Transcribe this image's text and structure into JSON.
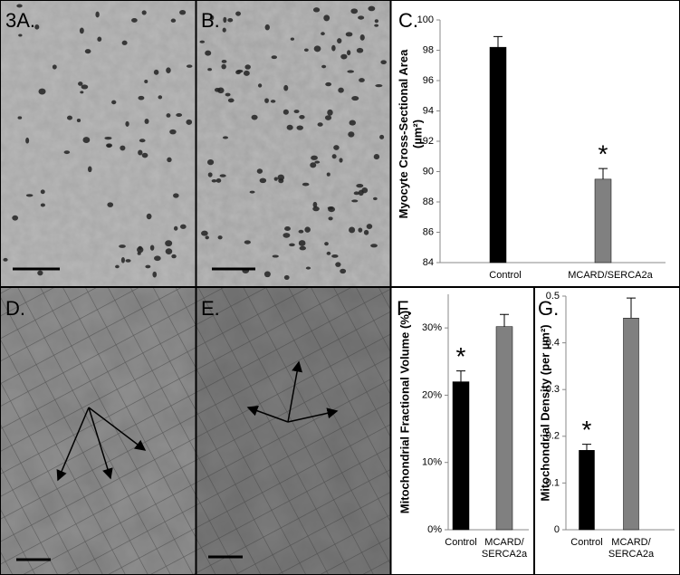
{
  "panel_labels": [
    "3A.",
    "B.",
    "D.",
    "E."
  ],
  "chart_data": [
    {
      "type": "bar",
      "panel_label": "C.",
      "y_label": "Myocyte Cross-Sectional Area (µm²)",
      "categories": [
        "Control",
        "MCARD/SERCA2a"
      ],
      "values": [
        98.2,
        89.5
      ],
      "errors": [
        0.7,
        0.7
      ],
      "colors": [
        "#000000",
        "#808080"
      ],
      "ylim": [
        84,
        100
      ],
      "yticks": [
        84,
        86,
        88,
        90,
        92,
        94,
        96,
        98,
        100
      ],
      "annotations": [
        {
          "text": "*",
          "x": "MCARD/SERCA2a"
        }
      ]
    },
    {
      "type": "bar",
      "panel_label": "F.",
      "y_label": "Mitochondrial Fractional Volume (%)",
      "categories": [
        "Control",
        "MCARD/SERCA2a"
      ],
      "values": [
        22,
        30.2
      ],
      "errors": [
        1.6,
        1.8
      ],
      "colors": [
        "#000000",
        "#808080"
      ],
      "ylim": [
        0,
        35
      ],
      "yticks": [
        {
          "value": 0,
          "label": "0%"
        },
        {
          "value": 10,
          "label": "10%"
        },
        {
          "value": 20,
          "label": "20%"
        },
        {
          "value": 30,
          "label": "30%"
        }
      ],
      "annotations": [
        {
          "text": "*",
          "x": "Control"
        }
      ]
    },
    {
      "type": "bar",
      "panel_label": "G.",
      "y_label": "Mitochondrial Density (per µm²)",
      "categories": [
        "Control",
        "MCARD/SERCA2a"
      ],
      "values": [
        0.17,
        0.453
      ],
      "errors": [
        0.013,
        0.043
      ],
      "colors": [
        "#000000",
        "#808080"
      ],
      "ylim": [
        0,
        0.5
      ],
      "yticks": [
        0,
        0.1,
        0.2,
        0.3,
        0.4,
        0.5
      ],
      "annotations": [
        {
          "text": "*",
          "x": "Control"
        }
      ]
    }
  ]
}
